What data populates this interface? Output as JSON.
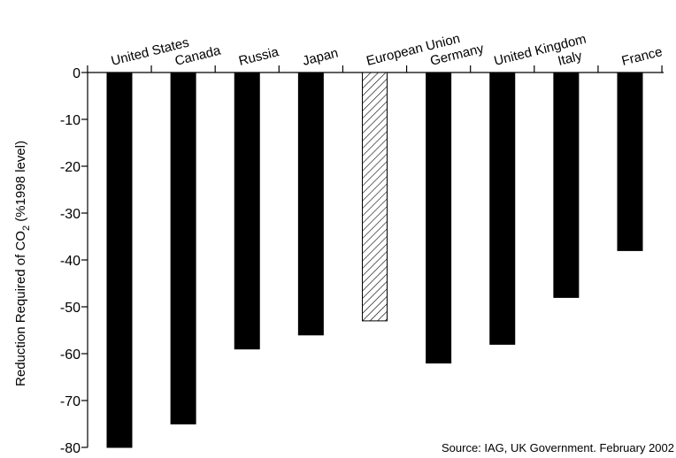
{
  "chart_data": {
    "type": "bar",
    "title": "",
    "xlabel": "",
    "ylabel": {
      "prefix": "Reduction Required of CO",
      "subscript": "2",
      "suffix": " (%1998 level)"
    },
    "ylim": [
      -80,
      0
    ],
    "yticks": [
      0,
      -10,
      -20,
      -30,
      -40,
      -50,
      -60,
      -70,
      -80
    ],
    "ytick_labels": [
      "0",
      "-10",
      "-20",
      "-30",
      "-40",
      "-50",
      "-60",
      "-70",
      "-80"
    ],
    "categories": [
      "United States",
      "Canada",
      "Russia",
      "Japan",
      "European Union",
      "Germany",
      "United Kingdom",
      "Italy",
      "France"
    ],
    "values": [
      -80,
      -75,
      -59,
      -56,
      -53,
      -62,
      -58,
      -48,
      -38
    ],
    "bar_styles": [
      "solid",
      "solid",
      "solid",
      "solid",
      "hatched",
      "solid",
      "solid",
      "solid",
      "solid"
    ],
    "bar_color": "#000000",
    "category_axis_position": "top",
    "grid": false,
    "annotation": "Source: IAG, UK Government. February 2002"
  }
}
